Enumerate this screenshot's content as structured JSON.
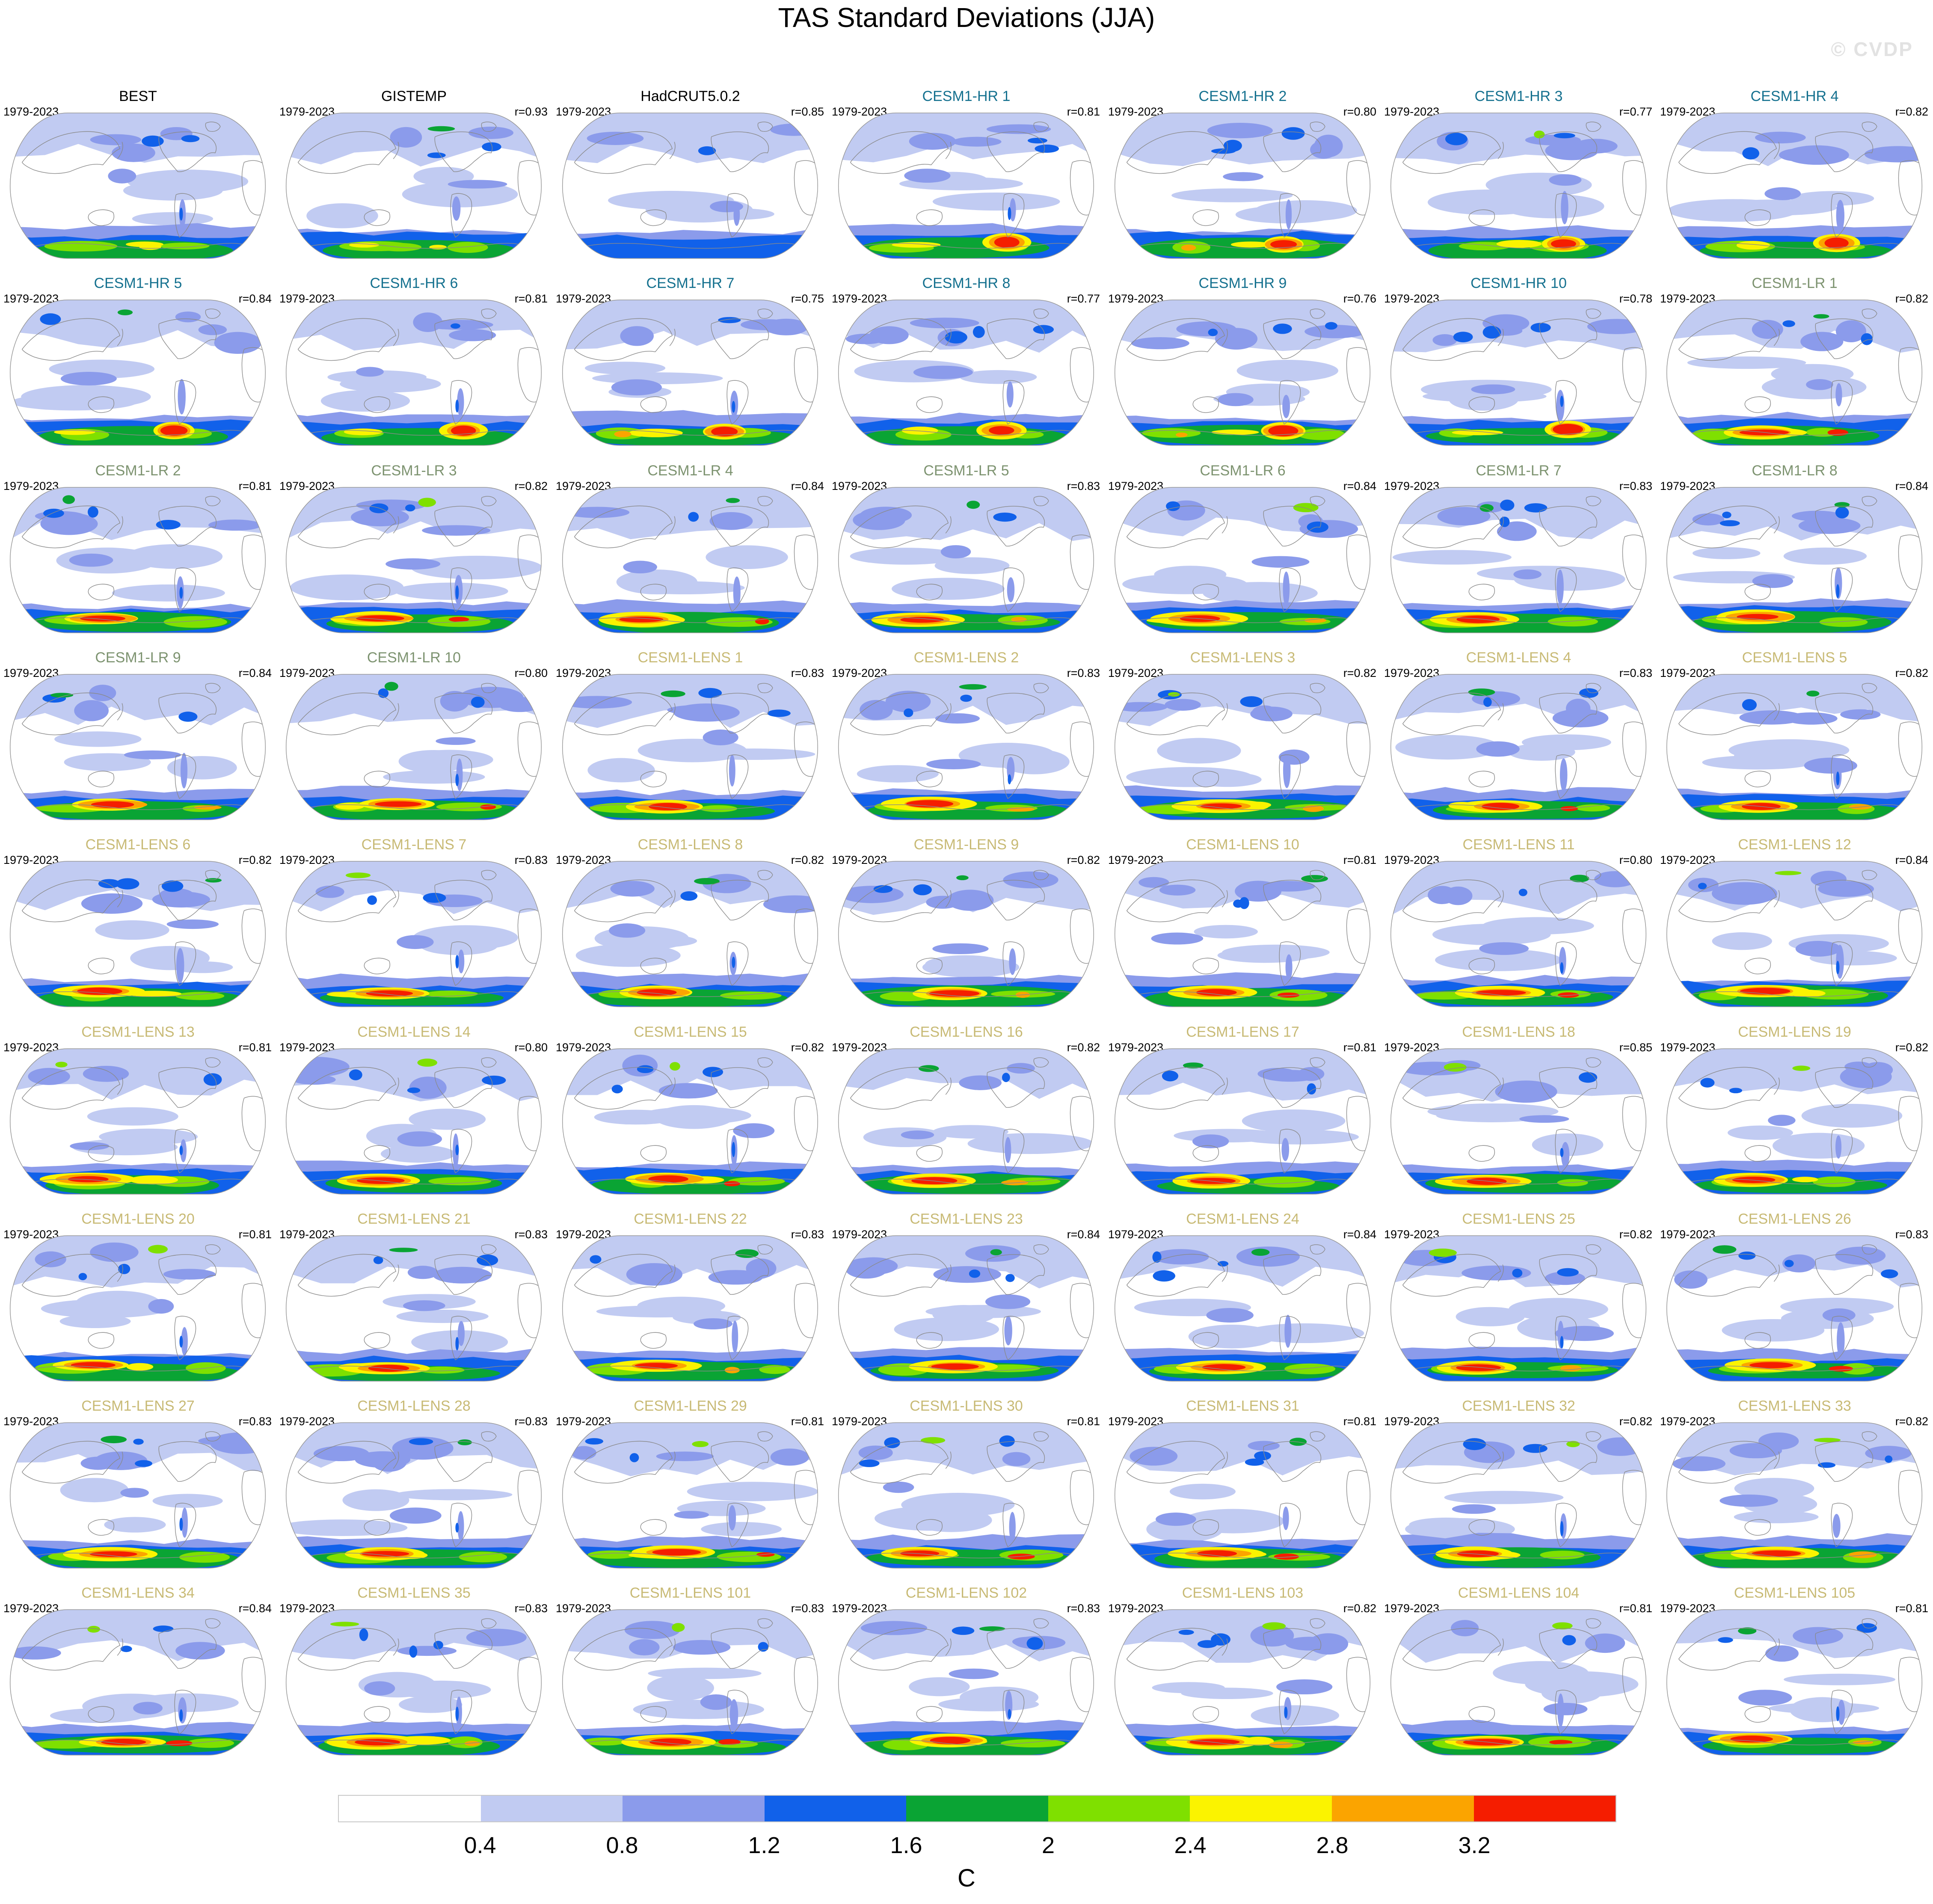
{
  "header": {
    "title": "TAS Standard Deviations (JJA)",
    "watermark": "© CVDP"
  },
  "panel_defaults": {
    "period": "1979-2023",
    "r_prefix": "r="
  },
  "chart_data": {
    "type": "heatmap",
    "title": "TAS Standard Deviations (JJA)",
    "subtitle": "Grid of global TAS standard-deviation maps (observations vs CESM1 ensembles), Winkel-tripel projection, Pacific-centered",
    "units": "C",
    "legend_position": "bottom",
    "levels": [
      0.4,
      0.8,
      1.2,
      1.6,
      2,
      2.4,
      2.8,
      3.2
    ],
    "colors": [
      "#ffffff",
      "#c1cbf2",
      "#8b9beb",
      "#1161ea",
      "#0aa434",
      "#7fe000",
      "#fbf300",
      "#fba400",
      "#f51d00"
    ],
    "coast_color": "#8a8a8a",
    "outline_color": "#999999",
    "rows": 9,
    "cols": 7,
    "group_label_colors": {
      "obs": "#000000",
      "hr": "#15718f",
      "lr": "#7d9370",
      "lens": "#c8ba75"
    },
    "panels": [
      {
        "label": "BEST",
        "group": "obs",
        "r": null,
        "south": "mild"
      },
      {
        "label": "GISTEMP",
        "group": "obs",
        "r": "0.93",
        "south": "mild"
      },
      {
        "label": "HadCRUT5.0.2",
        "group": "obs",
        "r": "0.85",
        "south": "none"
      },
      {
        "label": "CESM1-HR 1",
        "group": "hr",
        "r": "0.81",
        "south": "hotspot"
      },
      {
        "label": "CESM1-HR 2",
        "group": "hr",
        "r": "0.80",
        "south": "hotspot"
      },
      {
        "label": "CESM1-HR 3",
        "group": "hr",
        "r": "0.77",
        "south": "hotspot"
      },
      {
        "label": "CESM1-HR 4",
        "group": "hr",
        "r": "0.82",
        "south": "hotspot"
      },
      {
        "label": "CESM1-HR 5",
        "group": "hr",
        "r": "0.84",
        "south": "hotspot"
      },
      {
        "label": "CESM1-HR 6",
        "group": "hr",
        "r": "0.81",
        "south": "hotspot"
      },
      {
        "label": "CESM1-HR 7",
        "group": "hr",
        "r": "0.75",
        "south": "hotspot"
      },
      {
        "label": "CESM1-HR 8",
        "group": "hr",
        "r": "0.77",
        "south": "hotspot"
      },
      {
        "label": "CESM1-HR 9",
        "group": "hr",
        "r": "0.76",
        "south": "hotspot"
      },
      {
        "label": "CESM1-HR 10",
        "group": "hr",
        "r": "0.78",
        "south": "hotspot"
      },
      {
        "label": "CESM1-LR 1",
        "group": "lr",
        "r": "0.82",
        "south": "streak"
      },
      {
        "label": "CESM1-LR 2",
        "group": "lr",
        "r": "0.81",
        "south": "streak"
      },
      {
        "label": "CESM1-LR 3",
        "group": "lr",
        "r": "0.82",
        "south": "streak"
      },
      {
        "label": "CESM1-LR 4",
        "group": "lr",
        "r": "0.84",
        "south": "streak"
      },
      {
        "label": "CESM1-LR 5",
        "group": "lr",
        "r": "0.83",
        "south": "streak"
      },
      {
        "label": "CESM1-LR 6",
        "group": "lr",
        "r": "0.84",
        "south": "streak"
      },
      {
        "label": "CESM1-LR 7",
        "group": "lr",
        "r": "0.83",
        "south": "streak"
      },
      {
        "label": "CESM1-LR 8",
        "group": "lr",
        "r": "0.84",
        "south": "streak"
      },
      {
        "label": "CESM1-LR 9",
        "group": "lr",
        "r": "0.84",
        "south": "streak"
      },
      {
        "label": "CESM1-LR 10",
        "group": "lr",
        "r": "0.80",
        "south": "streak"
      },
      {
        "label": "CESM1-LENS 1",
        "group": "lens",
        "r": "0.83",
        "south": "streak"
      },
      {
        "label": "CESM1-LENS 2",
        "group": "lens",
        "r": "0.83",
        "south": "streak"
      },
      {
        "label": "CESM1-LENS 3",
        "group": "lens",
        "r": "0.82",
        "south": "streak"
      },
      {
        "label": "CESM1-LENS 4",
        "group": "lens",
        "r": "0.83",
        "south": "streak"
      },
      {
        "label": "CESM1-LENS 5",
        "group": "lens",
        "r": "0.82",
        "south": "streak"
      },
      {
        "label": "CESM1-LENS 6",
        "group": "lens",
        "r": "0.82",
        "south": "streak"
      },
      {
        "label": "CESM1-LENS 7",
        "group": "lens",
        "r": "0.83",
        "south": "streak"
      },
      {
        "label": "CESM1-LENS 8",
        "group": "lens",
        "r": "0.82",
        "south": "streak"
      },
      {
        "label": "CESM1-LENS 9",
        "group": "lens",
        "r": "0.82",
        "south": "streak"
      },
      {
        "label": "CESM1-LENS 10",
        "group": "lens",
        "r": "0.81",
        "south": "streak"
      },
      {
        "label": "CESM1-LENS 11",
        "group": "lens",
        "r": "0.80",
        "south": "streak"
      },
      {
        "label": "CESM1-LENS 12",
        "group": "lens",
        "r": "0.84",
        "south": "streak"
      },
      {
        "label": "CESM1-LENS 13",
        "group": "lens",
        "r": "0.81",
        "south": "streak"
      },
      {
        "label": "CESM1-LENS 14",
        "group": "lens",
        "r": "0.80",
        "south": "streak"
      },
      {
        "label": "CESM1-LENS 15",
        "group": "lens",
        "r": "0.82",
        "south": "streak"
      },
      {
        "label": "CESM1-LENS 16",
        "group": "lens",
        "r": "0.82",
        "south": "streak"
      },
      {
        "label": "CESM1-LENS 17",
        "group": "lens",
        "r": "0.81",
        "south": "streak"
      },
      {
        "label": "CESM1-LENS 18",
        "group": "lens",
        "r": "0.85",
        "south": "streak"
      },
      {
        "label": "CESM1-LENS 19",
        "group": "lens",
        "r": "0.82",
        "south": "streak"
      },
      {
        "label": "CESM1-LENS 20",
        "group": "lens",
        "r": "0.81",
        "south": "streak"
      },
      {
        "label": "CESM1-LENS 21",
        "group": "lens",
        "r": "0.83",
        "south": "streak"
      },
      {
        "label": "CESM1-LENS 22",
        "group": "lens",
        "r": "0.83",
        "south": "streak"
      },
      {
        "label": "CESM1-LENS 23",
        "group": "lens",
        "r": "0.84",
        "south": "streak"
      },
      {
        "label": "CESM1-LENS 24",
        "group": "lens",
        "r": "0.84",
        "south": "streak"
      },
      {
        "label": "CESM1-LENS 25",
        "group": "lens",
        "r": "0.82",
        "south": "streak"
      },
      {
        "label": "CESM1-LENS 26",
        "group": "lens",
        "r": "0.83",
        "south": "streak"
      },
      {
        "label": "CESM1-LENS 27",
        "group": "lens",
        "r": "0.83",
        "south": "streak"
      },
      {
        "label": "CESM1-LENS 28",
        "group": "lens",
        "r": "0.83",
        "south": "streak"
      },
      {
        "label": "CESM1-LENS 29",
        "group": "lens",
        "r": "0.81",
        "south": "streak"
      },
      {
        "label": "CESM1-LENS 30",
        "group": "lens",
        "r": "0.81",
        "south": "streak"
      },
      {
        "label": "CESM1-LENS 31",
        "group": "lens",
        "r": "0.81",
        "south": "streak"
      },
      {
        "label": "CESM1-LENS 32",
        "group": "lens",
        "r": "0.82",
        "south": "streak"
      },
      {
        "label": "CESM1-LENS 33",
        "group": "lens",
        "r": "0.82",
        "south": "streak"
      },
      {
        "label": "CESM1-LENS 34",
        "group": "lens",
        "r": "0.84",
        "south": "streak"
      },
      {
        "label": "CESM1-LENS 35",
        "group": "lens",
        "r": "0.83",
        "south": "streak"
      },
      {
        "label": "CESM1-LENS 101",
        "group": "lens",
        "r": "0.83",
        "south": "streak"
      },
      {
        "label": "CESM1-LENS 102",
        "group": "lens",
        "r": "0.83",
        "south": "streak"
      },
      {
        "label": "CESM1-LENS 103",
        "group": "lens",
        "r": "0.82",
        "south": "streak"
      },
      {
        "label": "CESM1-LENS 104",
        "group": "lens",
        "r": "0.81",
        "south": "streak"
      },
      {
        "label": "CESM1-LENS 105",
        "group": "lens",
        "r": "0.81",
        "south": "streak"
      }
    ]
  }
}
